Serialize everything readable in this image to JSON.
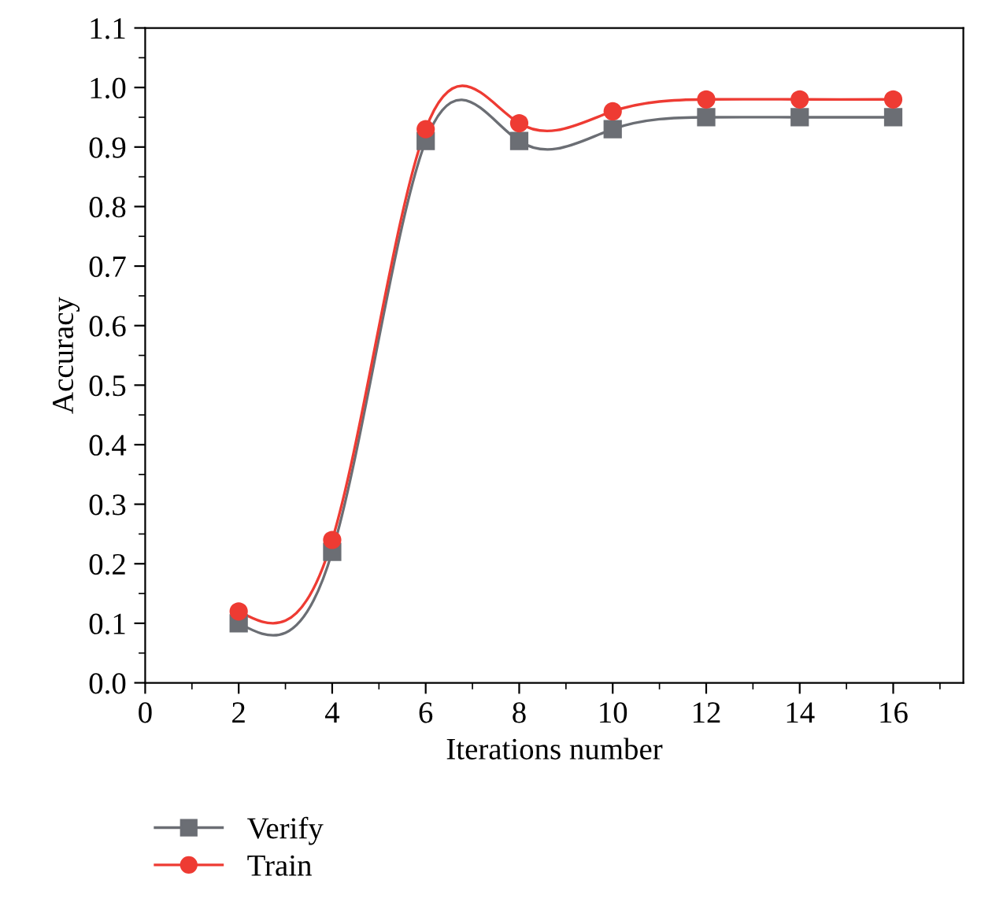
{
  "chart_data": {
    "type": "line",
    "xlabel": "Iterations number",
    "ylabel": "Accuracy",
    "x": [
      2,
      4,
      6,
      8,
      10,
      12,
      14,
      16
    ],
    "series": [
      {
        "name": "Verify",
        "color": "#6b6e74",
        "marker": "square",
        "values": [
          0.1,
          0.22,
          0.91,
          0.91,
          0.93,
          0.95,
          0.95,
          0.95
        ]
      },
      {
        "name": "Train",
        "color": "#ee3b33",
        "marker": "circle",
        "values": [
          0.12,
          0.24,
          0.93,
          0.94,
          0.96,
          0.98,
          0.98,
          0.98
        ]
      }
    ],
    "xlim": [
      0,
      17.5
    ],
    "xticks": [
      0,
      {
        "value": 1,
        "label": null
      },
      2,
      {
        "value": 3,
        "label": null
      },
      4,
      {
        "value": 5,
        "label": null
      },
      6,
      {
        "value": 7,
        "label": null
      },
      8,
      {
        "value": 9,
        "label": null
      },
      10,
      {
        "value": 11,
        "label": null
      },
      12,
      {
        "value": 13,
        "label": null
      },
      14,
      {
        "value": 15,
        "label": null
      },
      16,
      {
        "value": 17,
        "label": null
      }
    ],
    "ylim": [
      0,
      1.1
    ],
    "yticks": [
      {
        "value": 0,
        "label": "0.0"
      },
      {
        "value": 0.05,
        "label": null
      },
      {
        "value": 0.1,
        "label": "0.1"
      },
      {
        "value": 0.15,
        "label": null
      },
      {
        "value": 0.2,
        "label": "0.2"
      },
      {
        "value": 0.25,
        "label": null
      },
      {
        "value": 0.3,
        "label": "0.3"
      },
      {
        "value": 0.35,
        "label": null
      },
      {
        "value": 0.4,
        "label": "0.4"
      },
      {
        "value": 0.45,
        "label": null
      },
      {
        "value": 0.5,
        "label": "0.5"
      },
      {
        "value": 0.55,
        "label": null
      },
      {
        "value": 0.6,
        "label": "0.6"
      },
      {
        "value": 0.65,
        "label": null
      },
      {
        "value": 0.7,
        "label": "0.7"
      },
      {
        "value": 0.75,
        "label": null
      },
      {
        "value": 0.8,
        "label": "0.8"
      },
      {
        "value": 0.85,
        "label": null
      },
      {
        "value": 0.9,
        "label": "0.9"
      },
      {
        "value": 0.95,
        "label": null
      },
      {
        "value": 1.0,
        "label": "1.0"
      },
      {
        "value": 1.05,
        "label": null
      },
      {
        "value": 1.1,
        "label": "1.1"
      }
    ],
    "grid": false,
    "legend": "bottom left",
    "line_style": "solid"
  }
}
